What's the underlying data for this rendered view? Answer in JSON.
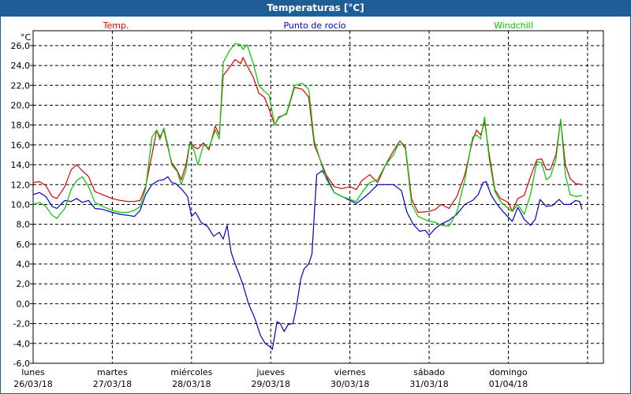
{
  "window": {
    "title": "Temperaturas [°C]"
  },
  "colors": {
    "temp": "#e00000",
    "dew": "#0000c8",
    "windchill": "#00c800",
    "titlebar": "#1f5d97"
  },
  "chart_data": {
    "type": "line",
    "title": "Temperaturas [°C]",
    "ylabel": "°C",
    "ylim": [
      -6,
      27.5
    ],
    "yticks": [
      {
        "v": 26,
        "label": "26,0"
      },
      {
        "v": 24,
        "label": "24,0"
      },
      {
        "v": 22,
        "label": "22,0"
      },
      {
        "v": 20,
        "label": "20,0"
      },
      {
        "v": 18,
        "label": "18,0"
      },
      {
        "v": 16,
        "label": "16,0"
      },
      {
        "v": 14,
        "label": "14,0"
      },
      {
        "v": 12,
        "label": "12,0"
      },
      {
        "v": 10,
        "label": "10,0"
      },
      {
        "v": 8,
        "label": "8,0"
      },
      {
        "v": 6,
        "label": "6,0"
      },
      {
        "v": 4,
        "label": "4,0"
      },
      {
        "v": 2,
        "label": "2,0"
      },
      {
        "v": 0,
        "label": "0,0"
      },
      {
        "v": -2,
        "label": "-2,0"
      },
      {
        "v": -4,
        "label": "-4,0"
      },
      {
        "v": -6,
        "label": "-6,0"
      }
    ],
    "xlim": [
      0,
      7.2
    ],
    "x_unit": "days since lunes 26/03/18 00:00",
    "xticks": [
      {
        "x": 0,
        "day": "lunes",
        "date": "26/03/18"
      },
      {
        "x": 1,
        "day": "martes",
        "date": "27/03/18"
      },
      {
        "x": 2,
        "day": "miércoles",
        "date": "28/03/18"
      },
      {
        "x": 3,
        "day": "jueves",
        "date": "29/03/18"
      },
      {
        "x": 4,
        "day": "viernes",
        "date": "30/03/18"
      },
      {
        "x": 5,
        "day": "sábado",
        "date": "31/03/18"
      },
      {
        "x": 6,
        "day": "domingo",
        "date": "01/04/18"
      }
    ],
    "grid": true,
    "legend_position": "top",
    "series": [
      {
        "name": "Temp.",
        "color": "#e00000",
        "points": [
          [
            0.0,
            12.2
          ],
          [
            0.08,
            12.3
          ],
          [
            0.16,
            11.9
          ],
          [
            0.24,
            10.8
          ],
          [
            0.3,
            10.6
          ],
          [
            0.4,
            11.8
          ],
          [
            0.48,
            13.5
          ],
          [
            0.55,
            14.0
          ],
          [
            0.62,
            13.4
          ],
          [
            0.7,
            12.8
          ],
          [
            0.78,
            11.3
          ],
          [
            0.9,
            10.9
          ],
          [
            1.0,
            10.6
          ],
          [
            1.1,
            10.4
          ],
          [
            1.2,
            10.3
          ],
          [
            1.28,
            10.3
          ],
          [
            1.35,
            10.4
          ],
          [
            1.42,
            11.8
          ],
          [
            1.5,
            15.0
          ],
          [
            1.56,
            17.5
          ],
          [
            1.6,
            16.8
          ],
          [
            1.65,
            17.5
          ],
          [
            1.7,
            15.8
          ],
          [
            1.75,
            14.2
          ],
          [
            1.82,
            13.4
          ],
          [
            1.87,
            12.5
          ],
          [
            1.93,
            14.0
          ],
          [
            1.98,
            16.3
          ],
          [
            2.03,
            15.8
          ],
          [
            2.08,
            15.6
          ],
          [
            2.15,
            16.2
          ],
          [
            2.22,
            15.5
          ],
          [
            2.3,
            17.9
          ],
          [
            2.35,
            17.0
          ],
          [
            2.4,
            23.0
          ],
          [
            2.48,
            23.8
          ],
          [
            2.55,
            24.6
          ],
          [
            2.62,
            24.2
          ],
          [
            2.65,
            24.8
          ],
          [
            2.7,
            24.0
          ],
          [
            2.78,
            22.8
          ],
          [
            2.85,
            21.2
          ],
          [
            2.92,
            20.8
          ],
          [
            2.98,
            19.6
          ],
          [
            3.05,
            18.0
          ],
          [
            3.1,
            18.8
          ],
          [
            3.2,
            19.1
          ],
          [
            3.3,
            21.8
          ],
          [
            3.4,
            21.6
          ],
          [
            3.48,
            20.8
          ],
          [
            3.55,
            16.0
          ],
          [
            3.62,
            14.6
          ],
          [
            3.7,
            13.0
          ],
          [
            3.8,
            11.8
          ],
          [
            3.9,
            11.6
          ],
          [
            4.0,
            11.8
          ],
          [
            4.08,
            11.5
          ],
          [
            4.15,
            12.4
          ],
          [
            4.25,
            13.0
          ],
          [
            4.35,
            12.2
          ],
          [
            4.45,
            14.0
          ],
          [
            4.55,
            15.4
          ],
          [
            4.63,
            16.4
          ],
          [
            4.7,
            15.8
          ],
          [
            4.78,
            10.5
          ],
          [
            4.86,
            9.2
          ],
          [
            5.0,
            9.3
          ],
          [
            5.08,
            9.5
          ],
          [
            5.15,
            10.0
          ],
          [
            5.25,
            9.6
          ],
          [
            5.35,
            10.8
          ],
          [
            5.45,
            13.0
          ],
          [
            5.55,
            16.5
          ],
          [
            5.6,
            17.5
          ],
          [
            5.65,
            17.0
          ],
          [
            5.7,
            18.3
          ],
          [
            5.76,
            15.0
          ],
          [
            5.83,
            11.5
          ],
          [
            5.9,
            10.6
          ],
          [
            6.0,
            10.2
          ],
          [
            6.05,
            9.3
          ],
          [
            6.12,
            10.6
          ],
          [
            6.2,
            10.9
          ],
          [
            6.28,
            12.8
          ],
          [
            6.36,
            14.5
          ],
          [
            6.42,
            14.6
          ],
          [
            6.48,
            13.5
          ],
          [
            6.53,
            13.5
          ],
          [
            6.6,
            15.0
          ],
          [
            6.66,
            18.5
          ],
          [
            6.72,
            14.0
          ],
          [
            6.78,
            12.6
          ],
          [
            6.85,
            12.1
          ],
          [
            6.93,
            12.0
          ]
        ]
      },
      {
        "name": "Punto de rocío",
        "color": "#0000c8",
        "points": [
          [
            0.0,
            11.0
          ],
          [
            0.08,
            11.2
          ],
          [
            0.16,
            10.8
          ],
          [
            0.24,
            9.8
          ],
          [
            0.3,
            9.6
          ],
          [
            0.4,
            10.4
          ],
          [
            0.48,
            10.3
          ],
          [
            0.55,
            10.6
          ],
          [
            0.62,
            10.2
          ],
          [
            0.7,
            10.4
          ],
          [
            0.78,
            9.6
          ],
          [
            0.88,
            9.5
          ],
          [
            1.0,
            9.2
          ],
          [
            1.1,
            9.0
          ],
          [
            1.2,
            8.9
          ],
          [
            1.28,
            8.8
          ],
          [
            1.35,
            9.4
          ],
          [
            1.42,
            11.0
          ],
          [
            1.5,
            12.0
          ],
          [
            1.58,
            12.4
          ],
          [
            1.65,
            12.5
          ],
          [
            1.7,
            12.8
          ],
          [
            1.75,
            12.2
          ],
          [
            1.8,
            12.1
          ],
          [
            1.88,
            11.5
          ],
          [
            1.95,
            10.8
          ],
          [
            2.0,
            8.8
          ],
          [
            2.05,
            9.2
          ],
          [
            2.12,
            8.2
          ],
          [
            2.2,
            7.8
          ],
          [
            2.28,
            6.8
          ],
          [
            2.35,
            7.2
          ],
          [
            2.4,
            6.5
          ],
          [
            2.45,
            7.9
          ],
          [
            2.5,
            5.2
          ],
          [
            2.55,
            4.0
          ],
          [
            2.6,
            3.0
          ],
          [
            2.65,
            1.9
          ],
          [
            2.72,
            0.0
          ],
          [
            2.8,
            -1.5
          ],
          [
            2.87,
            -3.2
          ],
          [
            2.93,
            -4.0
          ],
          [
            3.0,
            -4.4
          ],
          [
            3.02,
            -4.6
          ],
          [
            3.08,
            -1.8
          ],
          [
            3.12,
            -2.0
          ],
          [
            3.17,
            -2.8
          ],
          [
            3.22,
            -2.1
          ],
          [
            3.28,
            -2.0
          ],
          [
            3.32,
            -0.5
          ],
          [
            3.38,
            2.5
          ],
          [
            3.42,
            3.5
          ],
          [
            3.48,
            4.0
          ],
          [
            3.52,
            5.0
          ],
          [
            3.58,
            13.0
          ],
          [
            3.65,
            13.4
          ],
          [
            3.72,
            12.5
          ],
          [
            3.8,
            11.2
          ],
          [
            3.9,
            10.8
          ],
          [
            4.0,
            10.4
          ],
          [
            4.08,
            10.1
          ],
          [
            4.15,
            10.5
          ],
          [
            4.25,
            11.2
          ],
          [
            4.35,
            12.0
          ],
          [
            4.45,
            12.0
          ],
          [
            4.55,
            12.0
          ],
          [
            4.65,
            11.4
          ],
          [
            4.72,
            9.2
          ],
          [
            4.8,
            8.0
          ],
          [
            4.88,
            7.3
          ],
          [
            4.95,
            7.4
          ],
          [
            5.0,
            6.9
          ],
          [
            5.08,
            7.6
          ],
          [
            5.15,
            8.0
          ],
          [
            5.25,
            8.4
          ],
          [
            5.35,
            9.0
          ],
          [
            5.45,
            10.0
          ],
          [
            5.55,
            10.4
          ],
          [
            5.62,
            11.0
          ],
          [
            5.68,
            12.2
          ],
          [
            5.72,
            12.3
          ],
          [
            5.78,
            11.0
          ],
          [
            5.85,
            10.1
          ],
          [
            5.92,
            9.4
          ],
          [
            6.0,
            8.7
          ],
          [
            6.05,
            8.3
          ],
          [
            6.12,
            9.7
          ],
          [
            6.2,
            8.5
          ],
          [
            6.28,
            7.9
          ],
          [
            6.34,
            8.5
          ],
          [
            6.4,
            10.5
          ],
          [
            6.48,
            9.8
          ],
          [
            6.56,
            9.9
          ],
          [
            6.64,
            10.5
          ],
          [
            6.7,
            10.0
          ],
          [
            6.78,
            10.0
          ],
          [
            6.85,
            10.4
          ],
          [
            6.9,
            10.3
          ],
          [
            6.93,
            9.5
          ]
        ]
      },
      {
        "name": "Windchill",
        "color": "#00c800",
        "points": [
          [
            0.0,
            10.0
          ],
          [
            0.08,
            10.2
          ],
          [
            0.16,
            9.8
          ],
          [
            0.24,
            8.9
          ],
          [
            0.3,
            8.6
          ],
          [
            0.4,
            9.6
          ],
          [
            0.48,
            11.5
          ],
          [
            0.55,
            12.4
          ],
          [
            0.62,
            12.8
          ],
          [
            0.7,
            11.8
          ],
          [
            0.78,
            10.2
          ],
          [
            0.88,
            9.8
          ],
          [
            1.0,
            9.4
          ],
          [
            1.1,
            9.2
          ],
          [
            1.2,
            9.2
          ],
          [
            1.28,
            9.4
          ],
          [
            1.35,
            9.8
          ],
          [
            1.42,
            11.6
          ],
          [
            1.5,
            16.8
          ],
          [
            1.56,
            17.5
          ],
          [
            1.6,
            16.5
          ],
          [
            1.65,
            17.7
          ],
          [
            1.7,
            16.0
          ],
          [
            1.75,
            14.0
          ],
          [
            1.82,
            13.3
          ],
          [
            1.87,
            12.0
          ],
          [
            1.93,
            13.5
          ],
          [
            1.98,
            16.2
          ],
          [
            2.03,
            15.5
          ],
          [
            2.08,
            14.0
          ],
          [
            2.15,
            16.0
          ],
          [
            2.22,
            15.7
          ],
          [
            2.3,
            17.5
          ],
          [
            2.35,
            16.6
          ],
          [
            2.4,
            24.3
          ],
          [
            2.48,
            25.5
          ],
          [
            2.55,
            26.2
          ],
          [
            2.62,
            26.1
          ],
          [
            2.65,
            25.6
          ],
          [
            2.7,
            26.1
          ],
          [
            2.78,
            24.2
          ],
          [
            2.85,
            22.0
          ],
          [
            2.92,
            21.4
          ],
          [
            2.98,
            21.0
          ],
          [
            3.05,
            18.0
          ],
          [
            3.1,
            18.7
          ],
          [
            3.2,
            19.2
          ],
          [
            3.3,
            22.0
          ],
          [
            3.4,
            22.2
          ],
          [
            3.48,
            21.6
          ],
          [
            3.55,
            16.4
          ],
          [
            3.62,
            14.6
          ],
          [
            3.7,
            12.6
          ],
          [
            3.8,
            11.2
          ],
          [
            3.9,
            10.8
          ],
          [
            4.0,
            10.5
          ],
          [
            4.08,
            10.3
          ],
          [
            4.15,
            11.2
          ],
          [
            4.25,
            12.2
          ],
          [
            4.35,
            12.5
          ],
          [
            4.45,
            14.0
          ],
          [
            4.55,
            15.0
          ],
          [
            4.63,
            16.4
          ],
          [
            4.7,
            15.6
          ],
          [
            4.78,
            10.0
          ],
          [
            4.86,
            8.8
          ],
          [
            5.0,
            8.3
          ],
          [
            5.08,
            8.2
          ],
          [
            5.15,
            7.9
          ],
          [
            5.25,
            7.8
          ],
          [
            5.35,
            9.2
          ],
          [
            5.45,
            12.5
          ],
          [
            5.55,
            16.8
          ],
          [
            5.6,
            17.0
          ],
          [
            5.65,
            16.6
          ],
          [
            5.7,
            18.8
          ],
          [
            5.76,
            14.5
          ],
          [
            5.83,
            11.3
          ],
          [
            5.9,
            10.3
          ],
          [
            6.0,
            9.6
          ],
          [
            6.05,
            9.3
          ],
          [
            6.12,
            10.0
          ],
          [
            6.2,
            9.0
          ],
          [
            6.28,
            11.0
          ],
          [
            6.36,
            14.3
          ],
          [
            6.42,
            14.2
          ],
          [
            6.48,
            12.5
          ],
          [
            6.53,
            12.8
          ],
          [
            6.6,
            14.5
          ],
          [
            6.66,
            18.6
          ],
          [
            6.72,
            13.0
          ],
          [
            6.78,
            11.0
          ],
          [
            6.85,
            10.8
          ],
          [
            6.93,
            10.9
          ]
        ]
      }
    ]
  }
}
